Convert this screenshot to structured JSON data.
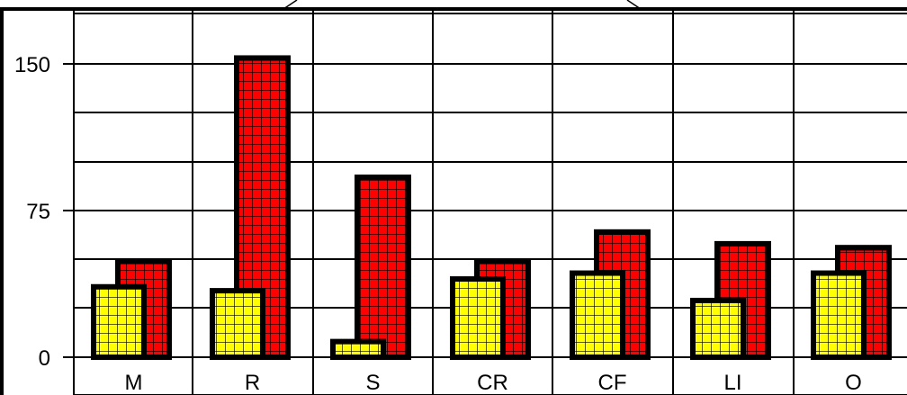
{
  "chart_data": {
    "type": "bar",
    "categories": [
      "M",
      "R",
      "S",
      "CR",
      "CF",
      "LI",
      "O"
    ],
    "series": [
      {
        "values": [
          36,
          34,
          8,
          40,
          43,
          29,
          43
        ],
        "color": "#ffff00"
      },
      {
        "values": [
          49,
          153,
          92,
          49,
          64,
          58,
          56
        ],
        "color": "#ff0000"
      }
    ],
    "y_ticks": [
      "0",
      "75",
      "150"
    ],
    "ylim": [
      0,
      172
    ],
    "grid": true
  }
}
